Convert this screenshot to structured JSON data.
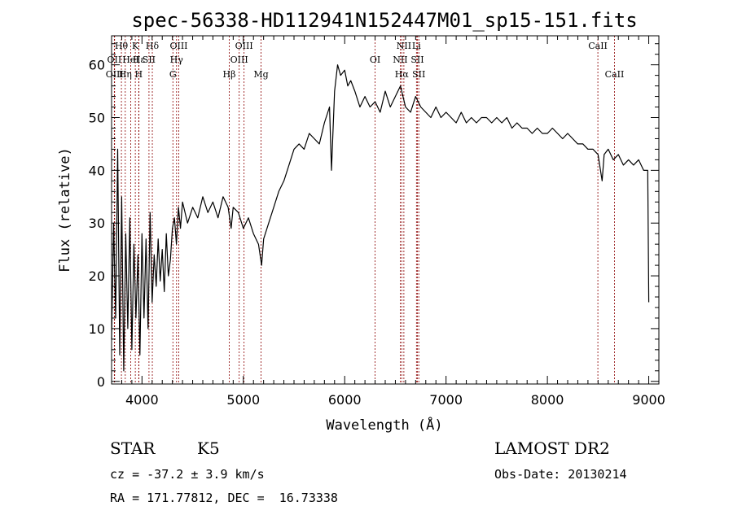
{
  "chart_data": {
    "type": "line",
    "title": "spec-56338-HD112941N152447M01_sp15-151.fits",
    "xlabel": "Wavelength (Å)",
    "ylabel": "Flux (relative)",
    "xlim": [
      3700,
      9100
    ],
    "ylim": [
      -0.5,
      65.5
    ],
    "xticks": [
      4000,
      5000,
      6000,
      7000,
      8000,
      9000
    ],
    "yticks": [
      0,
      10,
      20,
      30,
      40,
      50,
      60
    ],
    "grid": false,
    "series": [
      {
        "points": [
          [
            3700,
            8
          ],
          [
            3720,
            30
          ],
          [
            3740,
            12
          ],
          [
            3760,
            44
          ],
          [
            3780,
            5
          ],
          [
            3800,
            35
          ],
          [
            3820,
            2
          ],
          [
            3840,
            28
          ],
          [
            3860,
            10
          ],
          [
            3880,
            31
          ],
          [
            3900,
            6
          ],
          [
            3920,
            26
          ],
          [
            3940,
            12
          ],
          [
            3960,
            24
          ],
          [
            3980,
            5
          ],
          [
            4000,
            28
          ],
          [
            4020,
            12
          ],
          [
            4040,
            27
          ],
          [
            4060,
            10
          ],
          [
            4080,
            32
          ],
          [
            4100,
            15
          ],
          [
            4120,
            24
          ],
          [
            4140,
            18
          ],
          [
            4160,
            27
          ],
          [
            4180,
            19
          ],
          [
            4200,
            25
          ],
          [
            4220,
            17
          ],
          [
            4240,
            28
          ],
          [
            4260,
            20
          ],
          [
            4280,
            23
          ],
          [
            4300,
            29
          ],
          [
            4320,
            31
          ],
          [
            4340,
            26
          ],
          [
            4360,
            33
          ],
          [
            4380,
            29
          ],
          [
            4400,
            34
          ],
          [
            4450,
            30
          ],
          [
            4500,
            33
          ],
          [
            4550,
            31
          ],
          [
            4600,
            35
          ],
          [
            4650,
            32
          ],
          [
            4700,
            34
          ],
          [
            4750,
            31
          ],
          [
            4800,
            35
          ],
          [
            4850,
            33
          ],
          [
            4880,
            29
          ],
          [
            4900,
            33
          ],
          [
            4950,
            32
          ],
          [
            5000,
            29
          ],
          [
            5050,
            31
          ],
          [
            5100,
            28
          ],
          [
            5150,
            26
          ],
          [
            5180,
            22
          ],
          [
            5200,
            27
          ],
          [
            5250,
            30
          ],
          [
            5300,
            33
          ],
          [
            5350,
            36
          ],
          [
            5400,
            38
          ],
          [
            5450,
            41
          ],
          [
            5500,
            44
          ],
          [
            5550,
            45
          ],
          [
            5600,
            44
          ],
          [
            5650,
            47
          ],
          [
            5700,
            46
          ],
          [
            5750,
            45
          ],
          [
            5800,
            49
          ],
          [
            5850,
            52
          ],
          [
            5870,
            40
          ],
          [
            5900,
            55
          ],
          [
            5930,
            60
          ],
          [
            5960,
            58
          ],
          [
            6000,
            59
          ],
          [
            6030,
            56
          ],
          [
            6060,
            57
          ],
          [
            6100,
            55
          ],
          [
            6150,
            52
          ],
          [
            6200,
            54
          ],
          [
            6250,
            52
          ],
          [
            6300,
            53
          ],
          [
            6350,
            51
          ],
          [
            6400,
            55
          ],
          [
            6450,
            52
          ],
          [
            6500,
            54
          ],
          [
            6550,
            56
          ],
          [
            6600,
            52
          ],
          [
            6650,
            51
          ],
          [
            6700,
            54
          ],
          [
            6750,
            52
          ],
          [
            6800,
            51
          ],
          [
            6850,
            50
          ],
          [
            6900,
            52
          ],
          [
            6950,
            50
          ],
          [
            7000,
            51
          ],
          [
            7050,
            50
          ],
          [
            7100,
            49
          ],
          [
            7150,
            51
          ],
          [
            7200,
            49
          ],
          [
            7250,
            50
          ],
          [
            7300,
            49
          ],
          [
            7350,
            50
          ],
          [
            7400,
            50
          ],
          [
            7450,
            49
          ],
          [
            7500,
            50
          ],
          [
            7550,
            49
          ],
          [
            7600,
            50
          ],
          [
            7650,
            48
          ],
          [
            7700,
            49
          ],
          [
            7750,
            48
          ],
          [
            7800,
            48
          ],
          [
            7850,
            47
          ],
          [
            7900,
            48
          ],
          [
            7950,
            47
          ],
          [
            8000,
            47
          ],
          [
            8050,
            48
          ],
          [
            8100,
            47
          ],
          [
            8150,
            46
          ],
          [
            8200,
            47
          ],
          [
            8250,
            46
          ],
          [
            8300,
            45
          ],
          [
            8350,
            45
          ],
          [
            8400,
            44
          ],
          [
            8450,
            44
          ],
          [
            8500,
            43
          ],
          [
            8540,
            38
          ],
          [
            8560,
            43
          ],
          [
            8600,
            44
          ],
          [
            8650,
            42
          ],
          [
            8700,
            43
          ],
          [
            8750,
            41
          ],
          [
            8800,
            42
          ],
          [
            8850,
            41
          ],
          [
            8900,
            42
          ],
          [
            8950,
            40
          ],
          [
            8990,
            40
          ],
          [
            9000,
            15
          ]
        ]
      }
    ],
    "lines": [
      {
        "label": "Hθ",
        "x": 3797,
        "row": 0
      },
      {
        "label": "OII",
        "x": 3727,
        "row": 1
      },
      {
        "label": "OIII",
        "x": 3730,
        "row": 2
      },
      {
        "label": "K",
        "x": 3934,
        "row": 0
      },
      {
        "label": "Hε",
        "x": 3970,
        "row": 1
      },
      {
        "label": "HeI",
        "x": 3889,
        "row": 1
      },
      {
        "label": "Hη",
        "x": 3835,
        "row": 2
      },
      {
        "label": "H",
        "x": 3968,
        "row": 2
      },
      {
        "label": "Hδ",
        "x": 4102,
        "row": 0
      },
      {
        "label": "SII",
        "x": 4069,
        "row": 1
      },
      {
        "label": "OIII",
        "x": 4363,
        "row": 0
      },
      {
        "label": "Hγ",
        "x": 4341,
        "row": 1
      },
      {
        "label": "G",
        "x": 4305,
        "row": 2
      },
      {
        "label": "OIII",
        "x": 5007,
        "row": 0
      },
      {
        "label": "OIII",
        "x": 4959,
        "row": 1
      },
      {
        "label": "Hβ",
        "x": 4861,
        "row": 2
      },
      {
        "label": "Mg",
        "x": 5175,
        "row": 2
      },
      {
        "label": "OI",
        "x": 6300,
        "row": 1
      },
      {
        "label": "NII",
        "x": 6584,
        "row": 0
      },
      {
        "label": "Li",
        "x": 6708,
        "row": 0
      },
      {
        "label": "NII",
        "x": 6548,
        "row": 1
      },
      {
        "label": "SII",
        "x": 6717,
        "row": 1
      },
      {
        "label": "Hα",
        "x": 6563,
        "row": 2
      },
      {
        "label": "SII",
        "x": 6731,
        "row": 2
      },
      {
        "label": "CaII",
        "x": 8498,
        "row": 0
      },
      {
        "label": "CaII",
        "x": 8662,
        "row": 2
      }
    ]
  },
  "info": {
    "class": "STAR",
    "subclass": "K5",
    "survey": "LAMOST DR2",
    "cz": "cz = -37.2 ± 3.9 km/s",
    "obs_date": "Obs-Date: 20130214",
    "radec": "RA = 171.77812, DEC =  16.73338"
  }
}
